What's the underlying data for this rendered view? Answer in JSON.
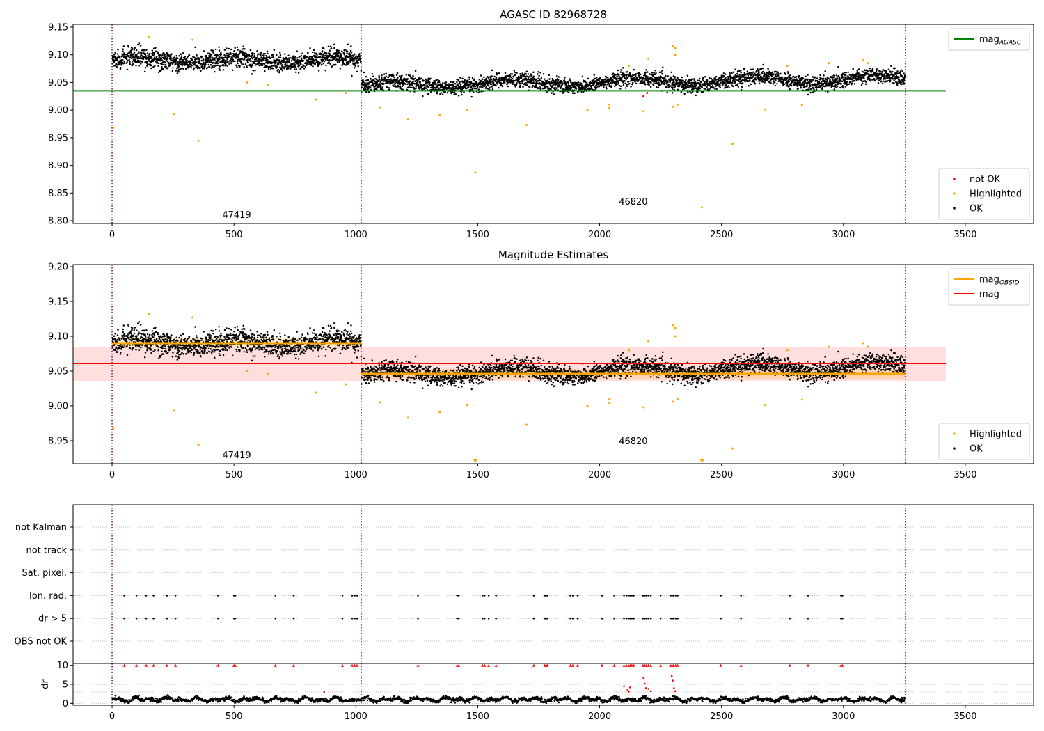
{
  "chart_data": [
    {
      "type": "scatter",
      "title": "AGASC ID 82968728",
      "xlim": [
        -160,
        3780
      ],
      "ylim": [
        8.795,
        9.155
      ],
      "x_ticks": [
        0,
        500,
        1000,
        1500,
        2000,
        2500,
        3000,
        3500
      ],
      "y_ticks": [
        8.8,
        8.85,
        8.9,
        8.95,
        9.0,
        9.05,
        9.1,
        9.15
      ],
      "y_tick_decimals": 2,
      "grid": false,
      "obs_boundaries": [
        0,
        1022,
        3255
      ],
      "obs_labels": [
        {
          "text": "47419",
          "x": 511,
          "y": 8.81
        },
        {
          "text": "46820",
          "x": 2138,
          "y": 8.834
        }
      ],
      "reference_lines": [
        {
          "name": "mag_AGASC",
          "value": 9.035,
          "x": [
            -160,
            3420
          ],
          "color": "#008000"
        }
      ],
      "segments": [
        {
          "x": [
            0,
            1022
          ],
          "mean": 9.09,
          "noise": 0.014,
          "wave": 0.01
        },
        {
          "x": [
            1022,
            3255
          ],
          "mean": 9.045,
          "noise": 0.011,
          "trend": 0.012
        }
      ],
      "highlighted_points": [
        [
          5,
          8.968
        ],
        [
          150,
          9.132
        ],
        [
          254,
          8.993
        ],
        [
          330,
          9.127
        ],
        [
          354,
          8.944
        ],
        [
          555,
          9.05
        ],
        [
          640,
          9.046
        ],
        [
          836,
          9.019
        ],
        [
          960,
          9.031
        ],
        [
          1100,
          9.005
        ],
        [
          1214,
          8.983
        ],
        [
          1344,
          8.991
        ],
        [
          1457,
          9.001
        ],
        [
          1490,
          8.887
        ],
        [
          1700,
          8.973
        ],
        [
          1950,
          9.0
        ],
        [
          2040,
          9.01
        ],
        [
          2040,
          9.004
        ],
        [
          2120,
          9.08
        ],
        [
          2180,
          8.998
        ],
        [
          2200,
          9.093
        ],
        [
          2300,
          9.116
        ],
        [
          2300,
          9.006
        ],
        [
          2310,
          9.112
        ],
        [
          2310,
          9.1
        ],
        [
          2320,
          9.01
        ],
        [
          2420,
          8.824
        ],
        [
          2545,
          8.939
        ],
        [
          2680,
          9.001
        ],
        [
          2770,
          9.08
        ],
        [
          2830,
          9.009
        ],
        [
          2940,
          9.085
        ],
        [
          3080,
          9.09
        ],
        [
          3100,
          9.085
        ]
      ],
      "not_ok_points": [
        [
          2180,
          9.025
        ],
        [
          2195,
          9.031
        ]
      ],
      "legends": [
        {
          "position": "top-right",
          "entries": [
            {
              "label": "mag",
              "sub": "AGASC",
              "kind": "line",
              "color": "#008000"
            }
          ]
        },
        {
          "position": "bottom-right",
          "entries": [
            {
              "label": "not OK",
              "kind": "marker",
              "color": "#ff0000"
            },
            {
              "label": "Highlighted",
              "kind": "marker",
              "color": "#ffa500"
            },
            {
              "label": "OK",
              "kind": "marker",
              "color": "#000000"
            }
          ]
        }
      ]
    },
    {
      "type": "scatter",
      "title": "Magnitude Estimates",
      "xlim": [
        -160,
        3780
      ],
      "ylim": [
        8.917,
        9.203
      ],
      "x_ticks": [
        0,
        500,
        1000,
        1500,
        2000,
        2500,
        3000,
        3500
      ],
      "y_ticks": [
        8.95,
        9.0,
        9.05,
        9.1,
        9.15,
        9.2
      ],
      "y_tick_decimals": 2,
      "grid": false,
      "obs_boundaries": [
        0,
        1022,
        3255
      ],
      "obs_labels": [
        {
          "text": "47419",
          "x": 511,
          "y": 8.929
        },
        {
          "text": "46820",
          "x": 2138,
          "y": 8.949
        }
      ],
      "bands": [
        {
          "x": [
            -160,
            3420
          ],
          "y": [
            9.036,
            9.085
          ],
          "color": "#ff0000",
          "opacity": 0.13
        },
        {
          "x": [
            0,
            1022
          ],
          "y": [
            9.083,
            9.097
          ],
          "color": "#ffa500",
          "opacity": 0.2
        },
        {
          "x": [
            1022,
            3255
          ],
          "y": [
            9.038,
            9.053
          ],
          "color": "#ffa500",
          "opacity": 0.2
        }
      ],
      "reference_lines": [
        {
          "name": "mag",
          "value": 9.061,
          "x": [
            -160,
            3420
          ],
          "color": "#ff0000"
        },
        {
          "name": "mag_OBSID 47419",
          "value": 9.09,
          "x": [
            0,
            1022
          ],
          "color": "#ffa500",
          "width": 3
        },
        {
          "name": "mag_OBSID 46820",
          "value": 9.046,
          "x": [
            1022,
            3255
          ],
          "color": "#ffa500",
          "width": 3
        }
      ],
      "segments": [
        {
          "x": [
            0,
            1022
          ],
          "mean": 9.09,
          "noise": 0.014,
          "wave": 0.01
        },
        {
          "x": [
            1022,
            3255
          ],
          "mean": 9.045,
          "noise": 0.011,
          "trend": 0.012
        }
      ],
      "highlighted_points": [
        [
          5,
          8.968
        ],
        [
          150,
          9.132
        ],
        [
          254,
          8.993
        ],
        [
          330,
          9.127
        ],
        [
          354,
          8.944
        ],
        [
          555,
          9.05
        ],
        [
          640,
          9.046
        ],
        [
          836,
          9.019
        ],
        [
          960,
          9.031
        ],
        [
          1100,
          9.005
        ],
        [
          1214,
          8.983
        ],
        [
          1344,
          8.991
        ],
        [
          1457,
          9.001
        ],
        [
          1700,
          8.973
        ],
        [
          1950,
          9.0
        ],
        [
          2040,
          9.01
        ],
        [
          2040,
          9.004
        ],
        [
          2120,
          9.08
        ],
        [
          2180,
          8.998
        ],
        [
          2200,
          9.093
        ],
        [
          2300,
          9.116
        ],
        [
          2300,
          9.006
        ],
        [
          2310,
          9.112
        ],
        [
          2310,
          9.1
        ],
        [
          2320,
          9.01
        ],
        [
          2545,
          8.939
        ],
        [
          2680,
          9.001
        ],
        [
          2770,
          9.08
        ],
        [
          2830,
          9.009
        ],
        [
          2940,
          9.085
        ],
        [
          3080,
          9.09
        ],
        [
          3100,
          9.085
        ]
      ],
      "offscale_markers": [
        [
          1490,
          8.887
        ],
        [
          2420,
          8.824
        ]
      ],
      "legends": [
        {
          "position": "top-right",
          "entries": [
            {
              "label": "mag",
              "sub": "OBSID",
              "kind": "line",
              "color": "#ffa500"
            },
            {
              "label": "mag",
              "kind": "line",
              "color": "#ff0000"
            }
          ]
        },
        {
          "position": "bottom-right",
          "entries": [
            {
              "label": "Highlighted",
              "kind": "marker",
              "color": "#ffa500"
            },
            {
              "label": "OK",
              "kind": "marker",
              "color": "#000000"
            }
          ]
        }
      ]
    },
    {
      "type": "scatter",
      "title": "",
      "xlim": [
        -160,
        3780
      ],
      "categories": [
        "OBS not OK",
        "dr > 5",
        "Ion. rad.",
        "Sat. pixel.",
        "not track",
        "not Kalman"
      ],
      "obs_boundaries": [
        0,
        1022,
        3255
      ],
      "grid": "dotted horizontal",
      "flag_times": [
        50,
        100,
        140,
        170,
        225,
        260,
        435,
        500,
        505,
        670,
        745,
        945,
        985,
        995,
        1005,
        1255,
        1415,
        1422,
        1520,
        1528,
        1545,
        1575,
        1730,
        1775,
        1780,
        1785,
        1880,
        1890,
        1910,
        2010,
        2060,
        2100,
        2110,
        2118,
        2125,
        2132,
        2140,
        2178,
        2185,
        2192,
        2200,
        2210,
        2250,
        2290,
        2296,
        2302,
        2312,
        2320,
        2497,
        2580,
        2780,
        2855,
        2990,
        2996
      ],
      "flag_rows": [
        "dr > 5",
        "Ion. rad."
      ]
    },
    {
      "type": "scatter",
      "title": "",
      "xlim": [
        -160,
        3780
      ],
      "ylabel": "dr",
      "ylim": [
        -0.5,
        10.5
      ],
      "y_ticks": [
        0,
        5,
        10
      ],
      "x_ticks": [
        0,
        500,
        1000,
        1500,
        2000,
        2500,
        3000,
        3500
      ],
      "y_tick_decimals": 0,
      "grid": "dotted horizontal",
      "obs_boundaries": [
        0,
        1022,
        3255
      ],
      "threshold_line": 3,
      "dr_spikes": [
        [
          870,
          3.0
        ],
        [
          2100,
          4.5
        ],
        [
          2115,
          3.6
        ],
        [
          2125,
          4.2
        ],
        [
          2120,
          3.1
        ],
        [
          2180,
          6.7
        ],
        [
          2185,
          5.2
        ],
        [
          2190,
          4.0
        ],
        [
          2200,
          3.8
        ],
        [
          2210,
          3.2
        ],
        [
          2296,
          7.2
        ],
        [
          2300,
          6.0
        ],
        [
          2305,
          4.0
        ],
        [
          2310,
          3.2
        ]
      ],
      "clip_value": 10
    }
  ],
  "style": {
    "ok_color": "#000000",
    "highlight_color": "#ffa500",
    "not_ok_color": "#ff0000",
    "boundary_color": "#800080",
    "grid_color": "#b0b0b0"
  }
}
